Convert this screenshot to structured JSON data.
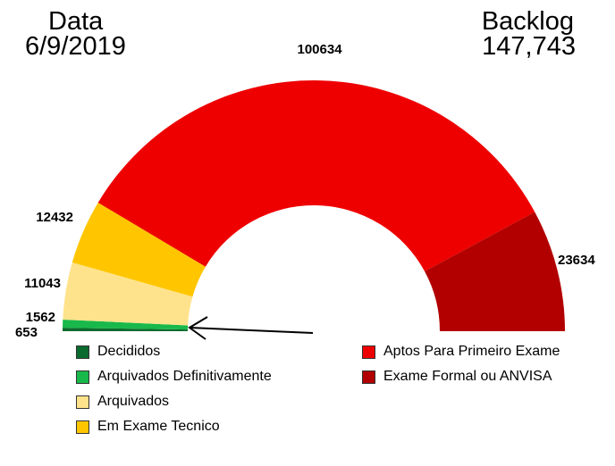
{
  "header": {
    "date_label": "Data",
    "date_value": "6/9/2019",
    "backlog_label": "Backlog",
    "backlog_value": "147,743"
  },
  "chart_data": {
    "type": "pie",
    "variant": "half-donut",
    "categories": [
      "Decididos",
      "Arquivados Definitivamente",
      "Arquivados",
      "Em Exame Tecnico",
      "Aptos Para Primeiro Exame",
      "Exame Formal ou ANVISA"
    ],
    "values": [
      653,
      1562,
      11043,
      12432,
      100634,
      23634
    ],
    "data_labels": [
      "653",
      "1562",
      "11043",
      "12432",
      "100634",
      "23634"
    ],
    "colors": [
      "#0b6b2e",
      "#19b84b",
      "#ffe38c",
      "#ffc600",
      "#ee0000",
      "#b20000"
    ],
    "legend_placement": "bottom",
    "annotation": "arrow pointing to the Decididos and Arquivados Definitivamente slices"
  }
}
